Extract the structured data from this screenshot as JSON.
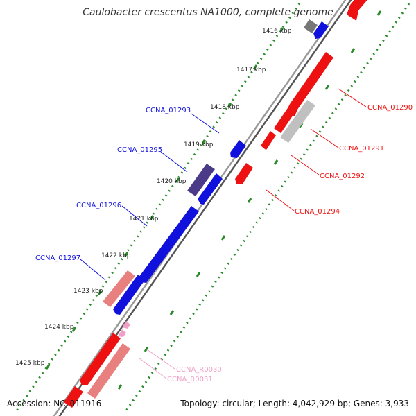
{
  "title": "Caulobacter crescentus NA1000, complete genome",
  "footer": {
    "accession": "Accession: NC_011916",
    "topology": "Topology: circular; Length: 4,042,929 bp; Genes: 3,933"
  },
  "colors": {
    "forward_gene": "#ee1111",
    "reverse_gene": "#1111dd",
    "pseudogene_light": "#e88080",
    "rna": "#f0a0c8",
    "dark_gene": "#4a3a88",
    "gray_gene": "#c0c0c0",
    "tick": "#2a8a2a",
    "backbone": "#777777"
  },
  "scale_labels": [
    "1416 kbp",
    "1417 kbp",
    "1418 kbp",
    "1419 kbp",
    "1420 kbp",
    "1421 kbp",
    "1422 kbp",
    "1423 kbp",
    "1424 kbp",
    "1425 kbp"
  ],
  "features": {
    "outer": [
      {
        "label": "CCNA_01290",
        "color": "red"
      },
      {
        "label": "CCNA_01291",
        "color": "red"
      },
      {
        "label": "CCNA_01292",
        "color": "red"
      },
      {
        "label": "CCNA_01294",
        "color": "red"
      }
    ],
    "inner": [
      {
        "label": "CCNA_01293",
        "color": "blue"
      },
      {
        "label": "CCNA_01295",
        "color": "blue"
      },
      {
        "label": "CCNA_01296",
        "color": "blue"
      },
      {
        "label": "CCNA_01297",
        "color": "blue"
      }
    ],
    "rna": [
      {
        "label": "CCNA_R0030",
        "color": "pink"
      },
      {
        "label": "CCNA_R0031",
        "color": "pink"
      }
    ]
  }
}
